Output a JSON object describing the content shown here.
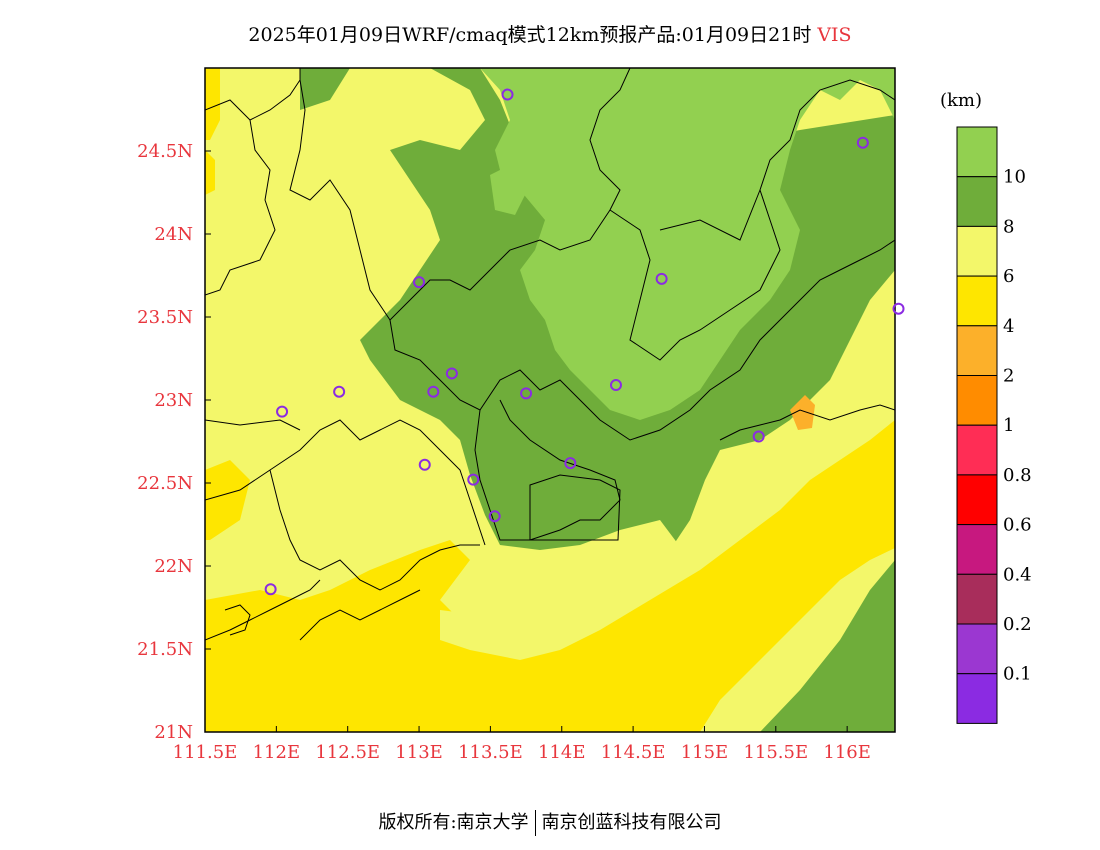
{
  "title": {
    "main": "2025年01月09日WRF/cmaq模式12km预报产品:01月09日21时",
    "variable": "VIS"
  },
  "legend": {
    "unit": "(km)",
    "bins": [
      {
        "color": "#92d050",
        "label": "10"
      },
      {
        "color": "#6fad3a",
        "label": "8"
      },
      {
        "color": "#f3f76a",
        "label": "6"
      },
      {
        "color": "#fee600",
        "label": "4"
      },
      {
        "color": "#fcb02a",
        "label": "2"
      },
      {
        "color": "#ff8c00",
        "label": "1"
      },
      {
        "color": "#ff2d55",
        "label": "0.8"
      },
      {
        "color": "#ff0000",
        "label": "0.6"
      },
      {
        "color": "#c7187f",
        "label": "0.4"
      },
      {
        "color": "#a82d5b",
        "label": "0.2"
      },
      {
        "color": "#9b37d1",
        "label": "0.1"
      },
      {
        "color": "#8b2be2",
        "label": ""
      }
    ]
  },
  "axes": {
    "x_ticks": [
      "111.5E",
      "112E",
      "112.5E",
      "113E",
      "113.5E",
      "114E",
      "114.5E",
      "115E",
      "115.5E",
      "116E"
    ],
    "y_ticks": [
      "24.5N",
      "24N",
      "23.5N",
      "23N",
      "22.5N",
      "22N",
      "21.5N",
      "21N"
    ],
    "label_color": "#e8363d"
  },
  "stations": [
    {
      "lon": 113.62,
      "lat": 24.84
    },
    {
      "lon": 116.11,
      "lat": 24.55
    },
    {
      "lon": 113.0,
      "lat": 23.71
    },
    {
      "lon": 114.7,
      "lat": 23.73
    },
    {
      "lon": 116.36,
      "lat": 23.55
    },
    {
      "lon": 112.44,
      "lat": 23.05
    },
    {
      "lon": 113.1,
      "lat": 23.05
    },
    {
      "lon": 113.23,
      "lat": 23.16
    },
    {
      "lon": 113.75,
      "lat": 23.04
    },
    {
      "lon": 114.38,
      "lat": 23.09
    },
    {
      "lon": 112.04,
      "lat": 22.93
    },
    {
      "lon": 115.38,
      "lat": 22.78
    },
    {
      "lon": 113.04,
      "lat": 22.61
    },
    {
      "lon": 113.38,
      "lat": 22.52
    },
    {
      "lon": 114.06,
      "lat": 22.62
    },
    {
      "lon": 113.53,
      "lat": 22.3
    },
    {
      "lon": 111.96,
      "lat": 21.86
    }
  ],
  "footer": {
    "left": "版权所有:南京大学",
    "right": "南京创蓝科技有限公司"
  }
}
